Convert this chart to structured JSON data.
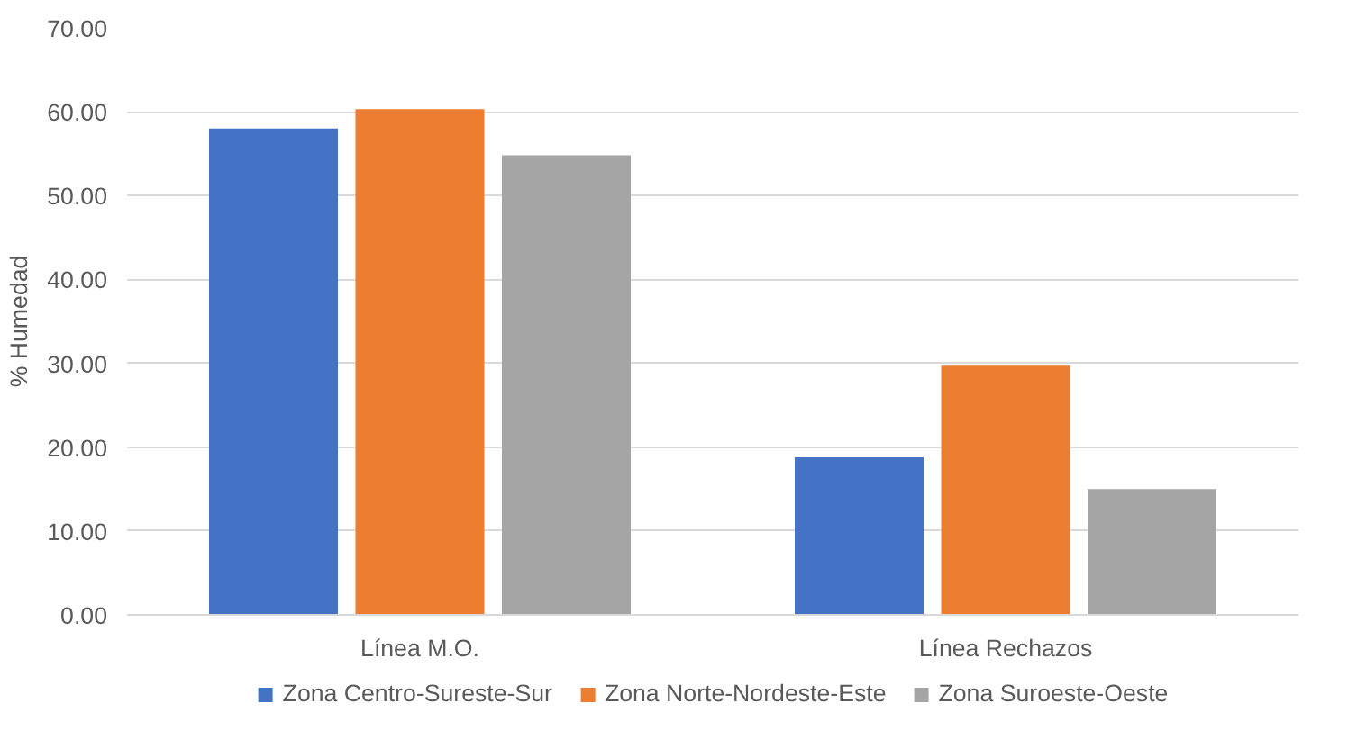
{
  "chart_data": {
    "type": "bar",
    "ylabel": "% Humedad",
    "categories": [
      "Línea M.O.",
      "Línea Rechazos"
    ],
    "series": [
      {
        "name": "Zona Centro-Sureste-Sur",
        "color": "#4472c4",
        "values": [
          58.0,
          18.8
        ]
      },
      {
        "name": "Zona Norte-Nordeste-Este",
        "color": "#ed7d31",
        "values": [
          60.3,
          29.7
        ]
      },
      {
        "name": "Zona Suroeste-Oeste",
        "color": "#a5a5a5",
        "values": [
          54.8,
          15.0
        ]
      }
    ],
    "ylim": [
      0,
      70
    ],
    "yticks": [
      {
        "value": 0,
        "label": "0.00"
      },
      {
        "value": 10,
        "label": "10.00"
      },
      {
        "value": 20,
        "label": "20.00"
      },
      {
        "value": 30,
        "label": "30.00"
      },
      {
        "value": 40,
        "label": "40.00"
      },
      {
        "value": 50,
        "label": "50.00"
      },
      {
        "value": 60,
        "label": "60.00"
      },
      {
        "value": 70,
        "label": "70.00"
      }
    ],
    "grid": "y",
    "legend": "bottom"
  }
}
